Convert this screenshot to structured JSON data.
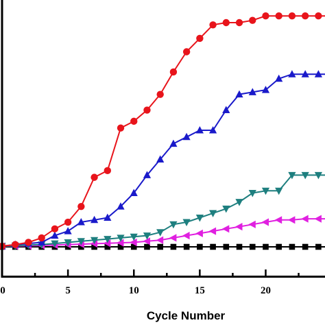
{
  "chart_data": {
    "type": "line",
    "xlabel": "Cycle Number",
    "ylabel": "",
    "xlim": [
      0,
      24.5
    ],
    "ylim": [
      0,
      1
    ],
    "xticks": [
      0,
      5,
      10,
      15,
      20
    ],
    "xtick_labels": [
      "0",
      "5",
      "10",
      "15",
      "20"
    ],
    "grid": false,
    "legend": "none",
    "series": [
      {
        "color": "#e8141b",
        "marker": "circle",
        "x": [
          0,
          1,
          2,
          3,
          4,
          5,
          6,
          7,
          8,
          9,
          10,
          11,
          12,
          13,
          14,
          15,
          16,
          17,
          18,
          19,
          20,
          21,
          22,
          23,
          24,
          25
        ],
        "y": [
          0.003,
          0.01,
          0.02,
          0.04,
          0.08,
          0.11,
          0.18,
          0.31,
          0.34,
          0.53,
          0.56,
          0.61,
          0.68,
          0.78,
          0.87,
          0.93,
          0.99,
          1.0,
          1.0,
          1.01,
          1.03,
          1.03,
          1.03,
          1.03,
          1.03,
          1.03
        ]
      },
      {
        "color": "#1a1aca",
        "marker": "triangle-up",
        "x": [
          0,
          1,
          2,
          3,
          4,
          5,
          6,
          7,
          8,
          9,
          10,
          11,
          12,
          13,
          14,
          15,
          16,
          17,
          18,
          19,
          20,
          21,
          22,
          23,
          24,
          25
        ],
        "y": [
          0.003,
          0.01,
          0.015,
          0.02,
          0.05,
          0.07,
          0.11,
          0.12,
          0.13,
          0.18,
          0.24,
          0.32,
          0.39,
          0.46,
          0.49,
          0.52,
          0.52,
          0.61,
          0.68,
          0.69,
          0.7,
          0.75,
          0.77,
          0.77,
          0.77,
          0.77
        ]
      },
      {
        "color": "#1e7f7f",
        "marker": "triangle-down",
        "x": [
          0,
          1,
          2,
          3,
          4,
          5,
          6,
          7,
          8,
          9,
          10,
          11,
          12,
          13,
          14,
          15,
          16,
          17,
          18,
          19,
          20,
          21,
          22,
          23,
          24,
          25
        ],
        "y": [
          0.003,
          0.005,
          0.008,
          0.01,
          0.015,
          0.02,
          0.025,
          0.03,
          0.035,
          0.04,
          0.045,
          0.05,
          0.065,
          0.1,
          0.11,
          0.13,
          0.15,
          0.17,
          0.2,
          0.24,
          0.25,
          0.25,
          0.32,
          0.32,
          0.32,
          0.32
        ]
      },
      {
        "color": "#e020e0",
        "marker": "triangle-left",
        "x": [
          0,
          1,
          2,
          3,
          4,
          5,
          6,
          7,
          8,
          9,
          10,
          11,
          12,
          13,
          14,
          15,
          16,
          17,
          18,
          19,
          20,
          21,
          22,
          23,
          24,
          25
        ],
        "y": [
          0.003,
          0.004,
          0.005,
          0.006,
          0.008,
          0.01,
          0.012,
          0.014,
          0.016,
          0.018,
          0.02,
          0.025,
          0.03,
          0.04,
          0.05,
          0.06,
          0.07,
          0.08,
          0.09,
          0.1,
          0.11,
          0.12,
          0.12,
          0.125,
          0.125,
          0.125
        ]
      },
      {
        "color": "#000000",
        "marker": "square",
        "x": [
          0,
          1,
          2,
          3,
          4,
          5,
          6,
          7,
          8,
          9,
          10,
          11,
          12,
          13,
          14,
          15,
          16,
          17,
          18,
          19,
          20,
          21,
          22,
          23,
          24,
          25
        ],
        "y": [
          0,
          0,
          0,
          0,
          0,
          0,
          0,
          0,
          0,
          0,
          0,
          0,
          0,
          0,
          0,
          0,
          0,
          0,
          0,
          0,
          0,
          0,
          0,
          0,
          0,
          0
        ]
      }
    ]
  }
}
